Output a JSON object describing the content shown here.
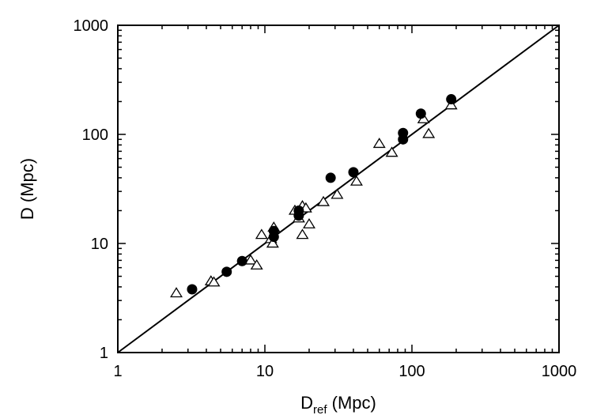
{
  "chart_data": {
    "type": "scatter",
    "title": "",
    "xlabel": {
      "main": "D",
      "sub": "ref",
      "unit": " (Mpc)"
    },
    "ylabel": "D (Mpc)",
    "xscale": "log",
    "yscale": "log",
    "xlim": [
      1,
      1000
    ],
    "ylim": [
      1,
      1000
    ],
    "xticks": [
      "1",
      "10",
      "100",
      "1000"
    ],
    "yticks": [
      "1",
      "10",
      "100",
      "1000"
    ],
    "grid": false,
    "reference_line": {
      "x": [
        1,
        1000
      ],
      "y": [
        1,
        1000
      ]
    },
    "series": [
      {
        "marker": "filled-circle",
        "color": "#000000",
        "points": [
          [
            3.2,
            3.8
          ],
          [
            5.5,
            5.5
          ],
          [
            7.0,
            6.9
          ],
          [
            11.5,
            11.5
          ],
          [
            11.5,
            13.0
          ],
          [
            17,
            18
          ],
          [
            17,
            20
          ],
          [
            28,
            40
          ],
          [
            40,
            45
          ],
          [
            87,
            90
          ],
          [
            87,
            103
          ],
          [
            115,
            155
          ],
          [
            185,
            210
          ]
        ]
      },
      {
        "marker": "open-triangle",
        "color": "#000000",
        "points": [
          [
            2.5,
            3.5
          ],
          [
            4.3,
            4.5
          ],
          [
            4.5,
            4.4
          ],
          [
            8.0,
            7.0
          ],
          [
            8.8,
            6.3
          ],
          [
            9.5,
            12
          ],
          [
            11,
            11
          ],
          [
            11.3,
            10
          ],
          [
            11.5,
            14
          ],
          [
            16,
            20
          ],
          [
            17,
            17
          ],
          [
            18,
            12
          ],
          [
            18,
            22
          ],
          [
            19,
            21
          ],
          [
            20,
            15
          ],
          [
            25,
            24
          ],
          [
            31,
            28
          ],
          [
            42,
            37
          ],
          [
            60,
            82
          ],
          [
            73,
            68
          ],
          [
            120,
            138
          ],
          [
            130,
            101
          ],
          [
            185,
            185
          ]
        ]
      }
    ]
  }
}
